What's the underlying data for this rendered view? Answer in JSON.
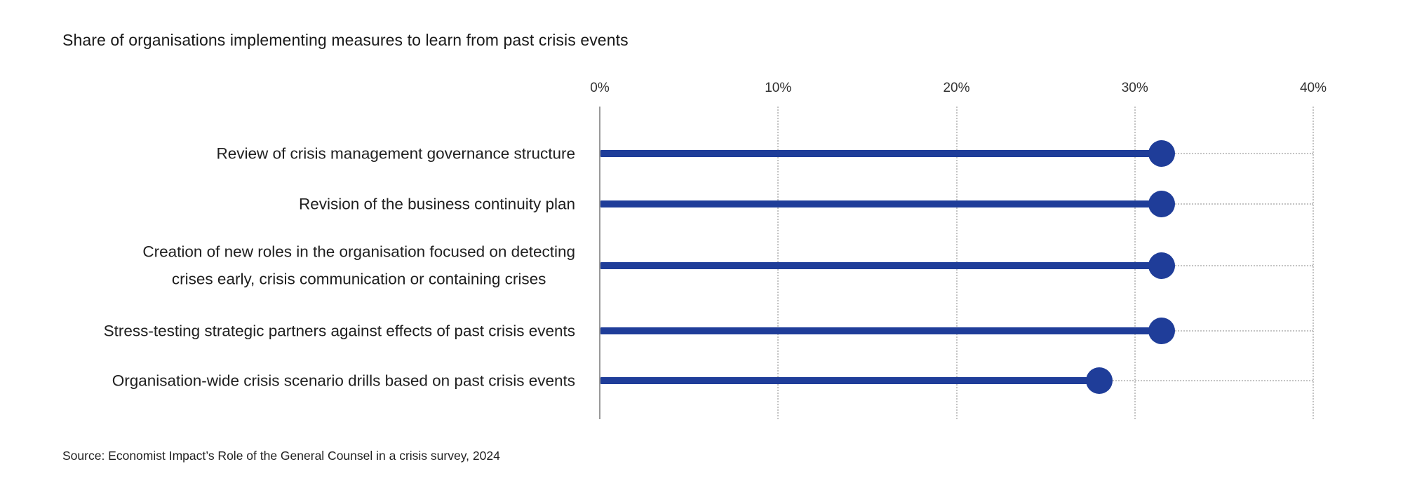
{
  "title": "Share of organisations implementing measures to learn from past crisis events",
  "source": "Source: Economist Impact’s Role of the General Counsel in a crisis survey, 2024",
  "colors": {
    "accent": "#1f3d99",
    "axis_line": "#999999",
    "gridline": "#c4c4c4",
    "text": "#202020"
  },
  "chart_data": {
    "type": "bar",
    "style": "lollipop",
    "orientation": "horizontal",
    "title": "Share of organisations implementing measures to learn from past crisis events",
    "categories": [
      "Review of crisis management governance structure",
      "Revision of the business continuity plan",
      "Creation of new roles in the organisation focused on detecting\ncrises early, crisis communication or containing crises",
      "Stress-testing strategic partners against effects of past crisis events",
      "Organisation-wide crisis scenario drills based on past crisis events"
    ],
    "values": [
      31.5,
      31.5,
      31.5,
      31.5,
      28
    ],
    "xlabel": "",
    "ylabel": "",
    "xlim": [
      0,
      40
    ],
    "xticks": [
      "0%",
      "10%",
      "20%",
      "30%",
      "40%"
    ],
    "grid": "vertical-dotted",
    "legend": "none",
    "unit": "%"
  }
}
